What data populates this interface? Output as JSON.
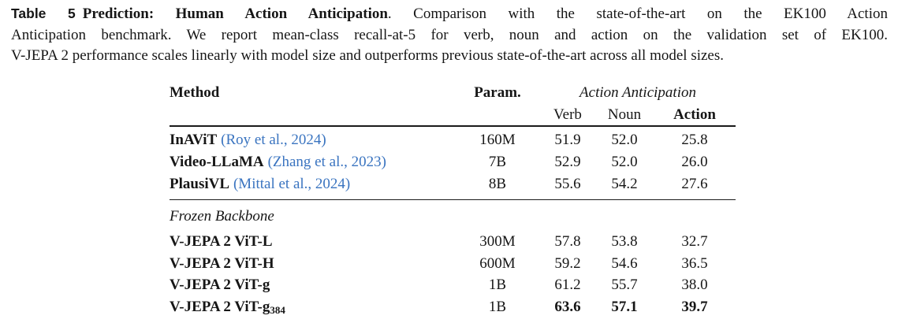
{
  "caption": {
    "label": "Table 5",
    "title": "Prediction: Human Action Anticipation",
    "line1_rest": ". Comparison with the state-of-the-art on the EK100 Action",
    "line2": "Anticipation benchmark. We report mean-class recall-at-5 for verb, noun and action on the validation set of EK100.",
    "line3": "V-JEPA 2 performance scales linearly with model size and outperforms previous state-of-the-art across all model sizes."
  },
  "table": {
    "headers": {
      "method": "Method",
      "param": "Param.",
      "group": "Action Anticipation",
      "verb": "Verb",
      "noun": "Noun",
      "action": "Action"
    },
    "rows_sota": [
      {
        "method": "InAViT",
        "cite": "(Roy et al., 2024)",
        "param": "160M",
        "verb": "51.9",
        "noun": "52.0",
        "action": "25.8"
      },
      {
        "method": "Video-LLaMA",
        "cite": "(Zhang et al., 2023)",
        "param": "7B",
        "verb": "52.9",
        "noun": "52.0",
        "action": "26.0"
      },
      {
        "method": "PlausiVL",
        "cite": "(Mittal et al., 2024)",
        "param": "8B",
        "verb": "55.6",
        "noun": "54.2",
        "action": "27.6"
      }
    ],
    "section_label": "Frozen Backbone",
    "rows_vjepa": [
      {
        "method": "V-JEPA 2 ViT-L",
        "method_sub": "",
        "param": "300M",
        "verb": "57.8",
        "noun": "53.8",
        "action": "32.7"
      },
      {
        "method": "V-JEPA 2 ViT-H",
        "method_sub": "",
        "param": "600M",
        "verb": "59.2",
        "noun": "54.6",
        "action": "36.5"
      },
      {
        "method": "V-JEPA 2 ViT-g",
        "method_sub": "",
        "param": "1B",
        "verb": "61.2",
        "noun": "55.7",
        "action": "38.0"
      },
      {
        "method": "V-JEPA 2 ViT-g",
        "method_sub": "384",
        "param": "1B",
        "verb": "63.6",
        "noun": "57.1",
        "action": "39.7"
      }
    ],
    "link_color": "#3a74c0"
  }
}
